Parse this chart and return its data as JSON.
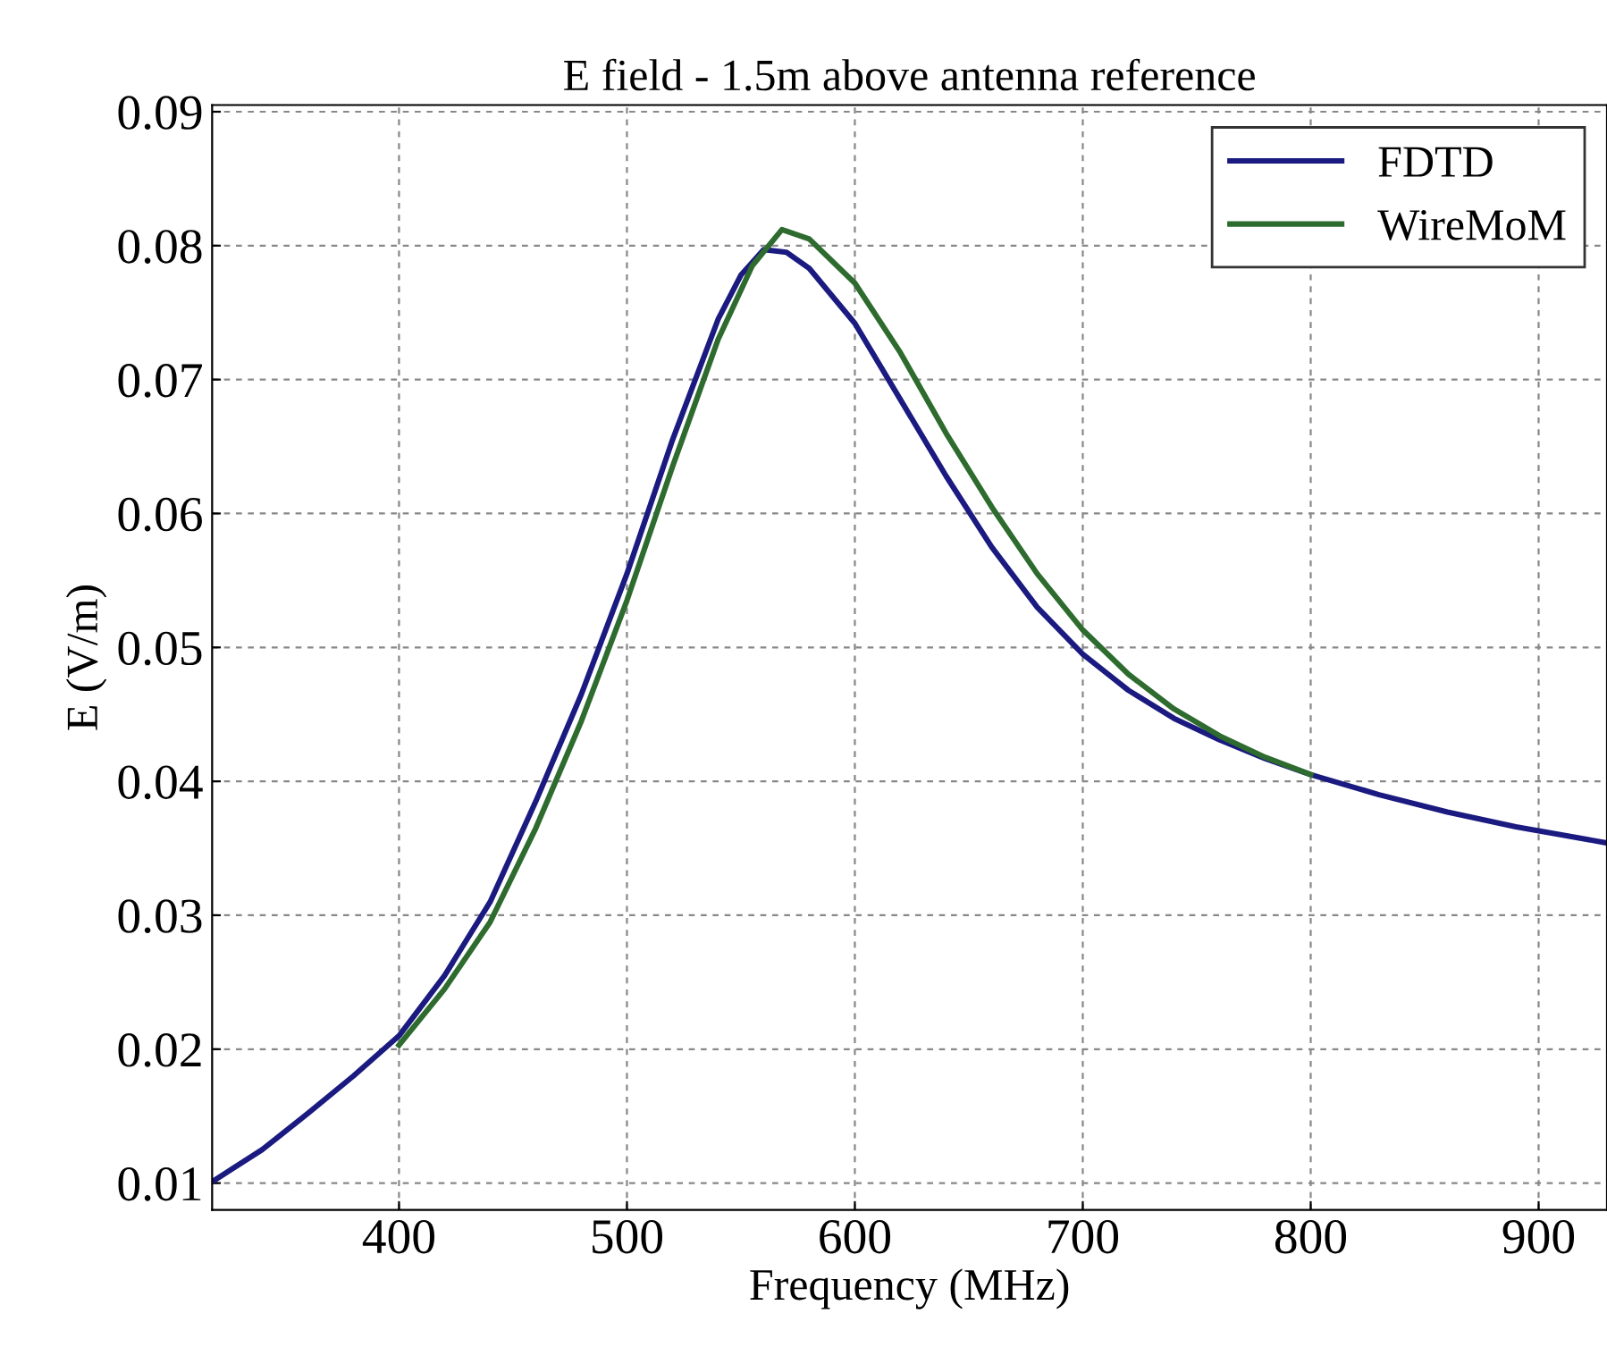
{
  "chart_data": {
    "type": "line",
    "title": "E field - 1.5m above antenna reference",
    "xlabel": "Frequency (MHz)",
    "ylabel": "E (V/m)",
    "xlim": [
      318,
      930
    ],
    "ylim": [
      0.008,
      0.0905
    ],
    "xticks": [
      400,
      500,
      600,
      700,
      800,
      900
    ],
    "yticks": [
      0.01,
      0.02,
      0.03,
      0.04,
      0.05,
      0.06,
      0.07,
      0.08,
      0.09
    ],
    "grid": true,
    "legend": "top right",
    "line_style": "solid",
    "marker": "none",
    "series": [
      {
        "name": "FDTD",
        "color": "#1a1a80",
        "x": [
          318,
          340,
          360,
          380,
          400,
          420,
          440,
          460,
          480,
          500,
          520,
          540,
          550,
          560,
          570,
          580,
          600,
          620,
          640,
          660,
          680,
          700,
          720,
          740,
          760,
          780,
          800,
          830,
          860,
          890,
          910,
          930
        ],
        "values": [
          0.0101,
          0.0125,
          0.0152,
          0.018,
          0.021,
          0.0255,
          0.031,
          0.0385,
          0.0465,
          0.0555,
          0.0655,
          0.0745,
          0.0778,
          0.0797,
          0.0795,
          0.0783,
          0.0742,
          0.0685,
          0.0628,
          0.0575,
          0.053,
          0.0495,
          0.0468,
          0.0447,
          0.0431,
          0.0417,
          0.0405,
          0.039,
          0.0377,
          0.0366,
          0.036,
          0.0354
        ]
      },
      {
        "name": "WireMoM",
        "color": "#2e6b2e",
        "x": [
          400,
          420,
          440,
          460,
          480,
          500,
          520,
          540,
          555,
          568,
          580,
          600,
          620,
          640,
          660,
          680,
          700,
          720,
          740,
          760,
          780,
          800
        ],
        "values": [
          0.0203,
          0.0245,
          0.0295,
          0.0365,
          0.0445,
          0.0535,
          0.0635,
          0.073,
          0.0785,
          0.0812,
          0.0805,
          0.0772,
          0.072,
          0.066,
          0.0605,
          0.0555,
          0.0513,
          0.048,
          0.0454,
          0.0434,
          0.0418,
          0.0405
        ]
      }
    ]
  }
}
